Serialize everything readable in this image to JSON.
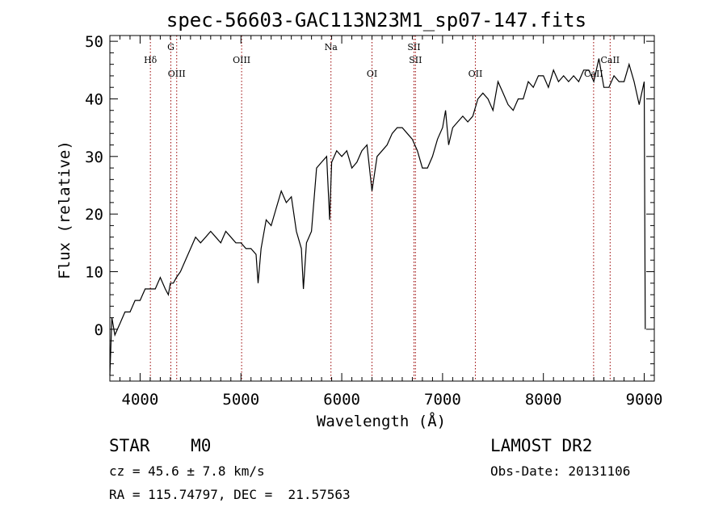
{
  "chart_data": {
    "type": "line",
    "title": "spec-56603-GAC113N23M1_sp07-147.fits",
    "xlabel": "Wavelength (Å)",
    "ylabel": "Flux (relative)",
    "xlim": [
      3700,
      9100
    ],
    "ylim": [
      -9,
      51
    ],
    "xticks": [
      4000,
      5000,
      6000,
      7000,
      8000,
      9000
    ],
    "yticks": [
      0,
      10,
      20,
      30,
      40,
      50
    ],
    "grid": false,
    "line_color": "#000000",
    "line_markers_color": "#990000",
    "lines": [
      {
        "label": "Hδ",
        "x": 4102,
        "label_row": "upper"
      },
      {
        "label": "G",
        "x": 4305,
        "label_row": "top"
      },
      {
        "label": "OIII",
        "x": 4363,
        "label_row": "lower"
      },
      {
        "label": "OIII",
        "x": 5007,
        "label_row": "upper"
      },
      {
        "label": "Na",
        "x": 5893,
        "label_row": "top"
      },
      {
        "label": "OI",
        "x": 6300,
        "label_row": "lower"
      },
      {
        "label": "SII",
        "x": 6716,
        "label_row": "top"
      },
      {
        "label": "SII",
        "x": 6731,
        "label_row": "upper"
      },
      {
        "label": "OII",
        "x": 7325,
        "label_row": "lower"
      },
      {
        "label": "CaII",
        "x": 8498,
        "label_row": "lower"
      },
      {
        "label": "CaII",
        "x": 8662,
        "label_row": "upper"
      }
    ],
    "series": [
      {
        "x": [
          3700,
          3720,
          3750,
          3800,
          3850,
          3900,
          3950,
          4000,
          4050,
          4100,
          4150,
          4200,
          4250,
          4280,
          4300,
          4330,
          4360,
          4400,
          4450,
          4500,
          4550,
          4600,
          4650,
          4700,
          4750,
          4800,
          4850,
          4900,
          4950,
          5000,
          5050,
          5100,
          5150,
          5170,
          5200,
          5250,
          5300,
          5350,
          5400,
          5450,
          5500,
          5550,
          5600,
          5620,
          5650,
          5700,
          5750,
          5800,
          5850,
          5880,
          5890,
          5900,
          5950,
          6000,
          6050,
          6100,
          6150,
          6200,
          6250,
          6300,
          6350,
          6400,
          6450,
          6500,
          6550,
          6600,
          6650,
          6700,
          6750,
          6800,
          6850,
          6900,
          6950,
          7000,
          7030,
          7060,
          7100,
          7150,
          7200,
          7250,
          7300,
          7350,
          7400,
          7450,
          7500,
          7550,
          7600,
          7650,
          7700,
          7750,
          7800,
          7850,
          7900,
          7950,
          8000,
          8050,
          8100,
          8150,
          8200,
          8250,
          8300,
          8350,
          8400,
          8450,
          8500,
          8550,
          8600,
          8650,
          8700,
          8750,
          8800,
          8850,
          8900,
          8950,
          9000,
          9010
        ],
        "values": [
          -8,
          2,
          -1,
          1,
          3,
          3,
          5,
          5,
          7,
          7,
          7,
          9,
          7,
          6,
          8,
          8,
          9,
          10,
          12,
          14,
          16,
          15,
          16,
          17,
          16,
          15,
          17,
          16,
          15,
          15,
          14,
          14,
          13,
          8,
          14,
          19,
          18,
          21,
          24,
          22,
          23,
          17,
          14,
          7,
          15,
          17,
          28,
          29,
          30,
          19,
          24,
          29,
          31,
          30,
          31,
          28,
          29,
          31,
          32,
          24,
          30,
          31,
          32,
          34,
          35,
          35,
          34,
          33,
          31,
          28,
          28,
          30,
          33,
          35,
          38,
          32,
          35,
          36,
          37,
          36,
          37,
          40,
          41,
          40,
          38,
          43,
          41,
          39,
          38,
          40,
          40,
          43,
          42,
          44,
          44,
          42,
          45,
          43,
          44,
          43,
          44,
          43,
          45,
          45,
          43,
          47,
          42,
          42,
          44,
          43,
          43,
          46,
          43,
          39,
          43,
          0
        ]
      }
    ]
  },
  "footer": {
    "left_line1": "STAR    M0",
    "left_line2": "cz = 45.6 ± 7.8 km/s",
    "left_line3": "RA = 115.74797, DEC =  21.57563",
    "right_line1": "LAMOST DR2",
    "right_line2": "Obs-Date: 20131106"
  }
}
